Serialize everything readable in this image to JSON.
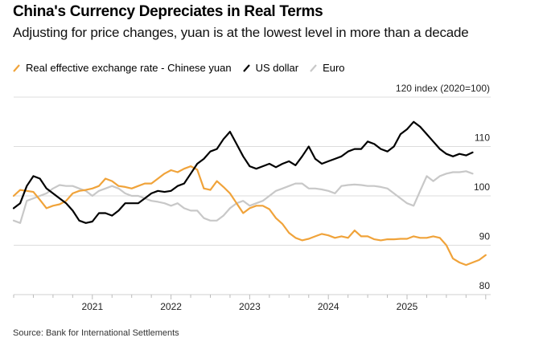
{
  "header": {
    "title": "China's Currency Depreciates in Real Terms",
    "subtitle": "Adjusting for price changes, yuan is at the lowest level in more than a decade"
  },
  "footer": {
    "source": "Source: Bank for International Settlements"
  },
  "chart_data": {
    "type": "line",
    "title": "China's Currency Depreciates in Real Terms",
    "subtitle": "Adjusting for price changes, yuan is at the lowest level in more than a decade",
    "xlabel": "",
    "ylabel": "index (2020=100)",
    "y_unit_label": "index (2020=100)",
    "ylim": [
      80,
      120
    ],
    "y_ticks": [
      80,
      90,
      100,
      110,
      120
    ],
    "x_ticks": [
      "2021",
      "2022",
      "2023",
      "2024",
      "2025"
    ],
    "x_start": "2020-01",
    "x_frequency": "monthly",
    "grid": true,
    "legend_position": "top-left",
    "series": [
      {
        "name": "Real effective exchange rate - Chinese yuan",
        "color": "#f0a33a",
        "values": [
          100.0,
          101.2,
          101.0,
          100.8,
          99.2,
          97.5,
          98.0,
          98.3,
          99.0,
          100.5,
          101.0,
          101.2,
          101.5,
          102.0,
          103.5,
          103.0,
          102.0,
          101.8,
          101.5,
          102.0,
          102.5,
          102.5,
          103.5,
          104.5,
          105.2,
          104.8,
          105.5,
          106.0,
          105.3,
          101.5,
          101.2,
          103.0,
          101.8,
          100.5,
          98.5,
          96.5,
          97.5,
          98.0,
          98.0,
          97.3,
          95.5,
          94.3,
          92.5,
          91.5,
          91.0,
          91.3,
          91.8,
          92.3,
          92.0,
          91.5,
          91.8,
          91.5,
          93.0,
          91.8,
          91.8,
          91.2,
          91.0,
          91.2,
          91.2,
          91.3,
          91.3,
          91.8,
          91.5,
          91.5,
          91.8,
          91.5,
          90.0,
          87.3,
          86.5,
          86.0,
          86.5,
          87.0,
          88.0
        ]
      },
      {
        "name": "US dollar",
        "color": "#000000",
        "values": [
          97.5,
          98.5,
          102.0,
          104.0,
          103.5,
          101.5,
          100.5,
          99.5,
          98.5,
          97.0,
          95.0,
          94.5,
          94.8,
          96.5,
          96.5,
          96.0,
          97.0,
          98.5,
          98.5,
          98.5,
          99.5,
          100.5,
          101.0,
          100.8,
          101.0,
          102.0,
          102.5,
          104.5,
          106.5,
          107.5,
          109.0,
          109.5,
          111.5,
          113.0,
          110.5,
          108.0,
          106.0,
          105.5,
          106.0,
          106.5,
          105.8,
          106.5,
          107.0,
          106.2,
          108.0,
          110.0,
          107.5,
          106.5,
          107.0,
          107.5,
          108.0,
          109.0,
          109.5,
          109.5,
          111.0,
          110.5,
          109.5,
          109.0,
          110.0,
          112.5,
          113.5,
          115.0,
          114.0,
          112.5,
          111.0,
          109.5,
          108.5,
          108.0,
          108.5,
          108.2,
          108.8
        ]
      },
      {
        "name": "Euro",
        "color": "#c8c8c8",
        "values": [
          95.0,
          94.5,
          99.0,
          99.5,
          100.0,
          100.5,
          101.5,
          102.2,
          102.0,
          102.0,
          101.5,
          101.0,
          100.0,
          101.0,
          101.5,
          102.0,
          101.5,
          100.5,
          100.0,
          100.0,
          99.5,
          99.0,
          98.8,
          98.5,
          98.0,
          98.5,
          97.5,
          97.0,
          97.0,
          95.5,
          95.0,
          95.0,
          96.0,
          97.5,
          98.5,
          99.0,
          98.0,
          98.5,
          99.0,
          100.0,
          101.0,
          101.5,
          102.0,
          102.5,
          102.5,
          101.5,
          101.5,
          101.3,
          101.0,
          100.5,
          102.0,
          102.2,
          102.3,
          102.2,
          102.0,
          102.0,
          101.8,
          101.5,
          100.5,
          99.5,
          98.5,
          98.0,
          101.0,
          104.0,
          103.0,
          104.0,
          104.5,
          104.8,
          104.8,
          105.0,
          104.5
        ]
      }
    ]
  }
}
